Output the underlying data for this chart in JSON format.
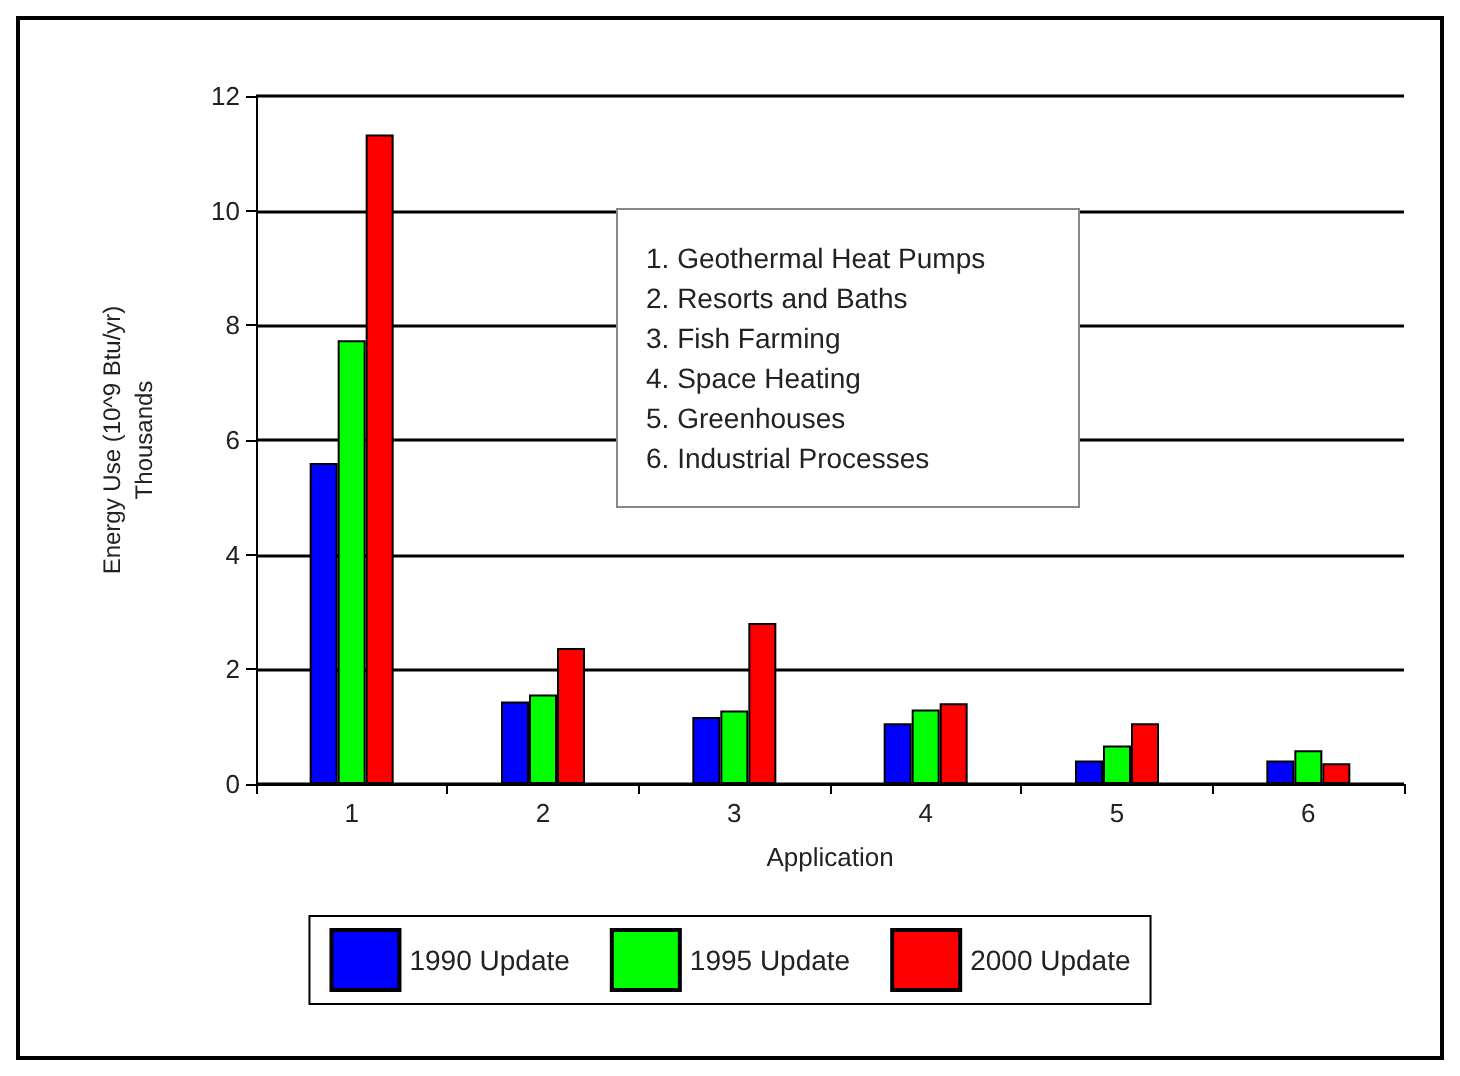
{
  "chart_data": {
    "type": "bar",
    "xlabel": "Application",
    "ylabel": "Energy Use (10^9 Btu/yr)\nThousands",
    "categories": [
      "1",
      "2",
      "3",
      "4",
      "5",
      "6"
    ],
    "series": [
      {
        "name": "1990 Update",
        "color": "#0000ff",
        "values": [
          5.6,
          1.44,
          1.17,
          1.06,
          0.41,
          0.41
        ]
      },
      {
        "name": "1995 Update",
        "color": "#00ff00",
        "values": [
          7.74,
          1.56,
          1.28,
          1.3,
          0.67,
          0.59
        ]
      },
      {
        "name": "2000 Update",
        "color": "#ff0000",
        "values": [
          11.33,
          2.37,
          2.81,
          1.41,
          1.06,
          0.36
        ]
      }
    ],
    "ylim": [
      0,
      12
    ],
    "yticks": [
      0,
      2,
      4,
      6,
      8,
      10,
      12
    ],
    "grid": "y",
    "legend": "bottom",
    "annotations": [
      "1. Geothermal Heat Pumps",
      "2. Resorts and Baths",
      "3. Fish Farming",
      "4. Space Heating",
      "5. Greenhouses",
      "6. Industrial Processes"
    ]
  }
}
